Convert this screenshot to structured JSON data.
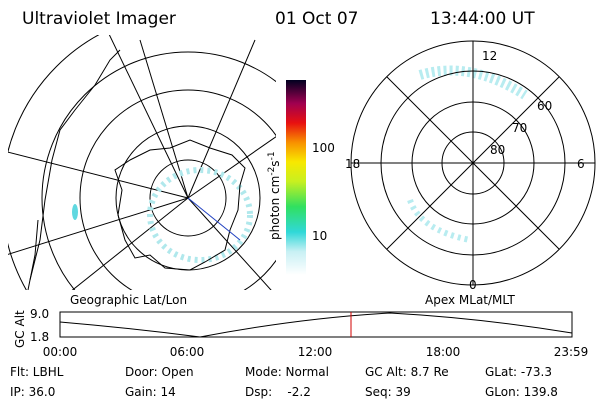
{
  "header": {
    "title": "Ultraviolet Imager",
    "date": "01 Oct 07",
    "time": "13:44:00 UT"
  },
  "colorbar": {
    "unit_parts": [
      "photon cm",
      "-2",
      "s",
      "-1"
    ],
    "ticks": [
      "100",
      "10"
    ]
  },
  "polar_plot": {
    "mlt_labels": [
      "12",
      "18",
      "6",
      "0"
    ],
    "mlat_labels": [
      "60",
      "70",
      "80"
    ]
  },
  "altitude_panel": {
    "left_title": "Geographic Lat/Lon",
    "right_title": "Apex MLat/MLT",
    "ylabel": "GC Alt",
    "yticks": [
      "9.0",
      "1.8"
    ],
    "xticks": [
      "00:00",
      "06:00",
      "12:00",
      "18:00",
      "23:59"
    ]
  },
  "footer": {
    "rows": [
      [
        "Flt: LBHL",
        "Door: Open",
        "Mode: Normal",
        "GC Alt: 8.7 Re",
        "GLat: -73.3"
      ],
      [
        "IP: 36.0",
        "Gain: 14",
        "Dsp:    -2.2",
        "Seq: 39",
        "GLon: 139.8"
      ]
    ]
  }
}
